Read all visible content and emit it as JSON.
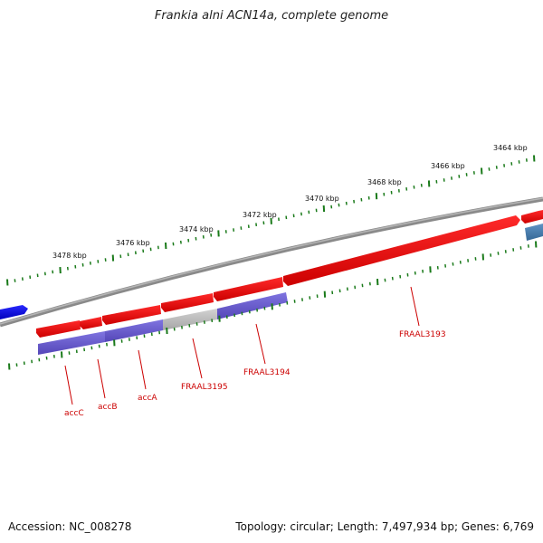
{
  "title": "Frankia alni ACN14a, complete genome",
  "footer": {
    "accession": "Accession: NC_008278",
    "summary": "Topology: circular; Length: 7,497,934 bp; Genes: 6,769"
  },
  "scale_labels": [
    "3478 kbp",
    "3476 kbp",
    "3474 kbp",
    "3472 kbp",
    "3470 kbp",
    "3468 kbp",
    "3466 kbp",
    "3464 kbp"
  ],
  "gene_labels": [
    "accC",
    "accB",
    "accA",
    "FRAAL3195",
    "FRAAL3194",
    "FRAAL3193"
  ],
  "colors": {
    "backbone": "#808080",
    "forward_gene": "#ee0000",
    "reverse_gene": "#6b5fd0",
    "gray_gene": "#bdbdbd",
    "blue_gene": "#0000ee",
    "steel_gene": "#4a7fb0",
    "tick": "#1a7a1a",
    "label": "#cc0000"
  }
}
